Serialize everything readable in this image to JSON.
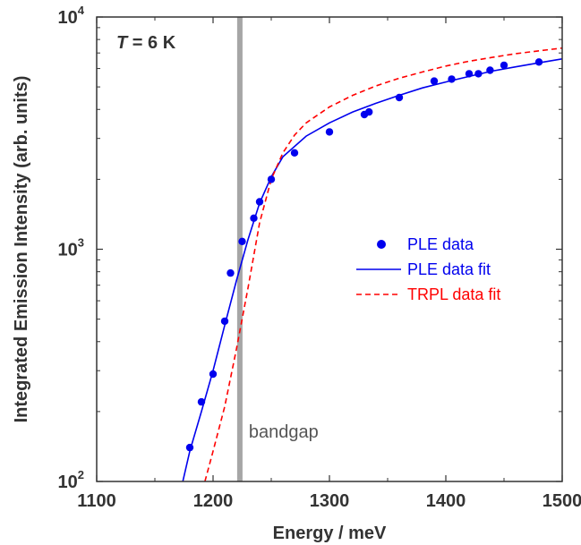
{
  "chart_data": {
    "type": "scatter",
    "title": "",
    "xlabel": "Energy / meV",
    "ylabel": "Integrated Emission Intensity (arb. units)",
    "xlim": [
      1100,
      1500
    ],
    "ylim": [
      100,
      10000
    ],
    "yscale": "log",
    "x_ticks": [
      "1100",
      "1200",
      "1300",
      "1400",
      "1500"
    ],
    "y_ticks": [
      {
        "base": "10",
        "exp": "2"
      },
      {
        "base": "10",
        "exp": "3"
      },
      {
        "base": "10",
        "exp": "4"
      }
    ],
    "grid": false,
    "legend_position": "right-middle",
    "annotation": {
      "italic": "T",
      "rest": " = 6 K"
    },
    "bandgap": {
      "label": "bandgap",
      "x": 1223,
      "color": "#a6a6a6"
    },
    "series": [
      {
        "name": "PLE data",
        "kind": "points",
        "color": "#0000ee",
        "x": [
          1180,
          1190,
          1200,
          1210,
          1215,
          1225,
          1235,
          1240,
          1250,
          1270,
          1300,
          1330,
          1334,
          1360,
          1390,
          1405,
          1420,
          1428,
          1438,
          1450,
          1480
        ],
        "y": [
          140,
          220,
          290,
          490,
          790,
          1080,
          1360,
          1600,
          2000,
          2600,
          3200,
          3800,
          3900,
          4500,
          5300,
          5400,
          5700,
          5700,
          5900,
          6200,
          6400
        ]
      },
      {
        "name": "PLE data fit",
        "kind": "line",
        "color": "#0000ee",
        "dash": "solid",
        "x": [
          1174,
          1180,
          1190,
          1200,
          1210,
          1220,
          1230,
          1240,
          1250,
          1260,
          1280,
          1300,
          1320,
          1340,
          1360,
          1380,
          1400,
          1420,
          1440,
          1460,
          1480,
          1500
        ],
        "y": [
          100,
          135,
          200,
          300,
          470,
          730,
          1100,
          1580,
          2050,
          2500,
          3070,
          3500,
          3900,
          4250,
          4600,
          4950,
          5250,
          5550,
          5850,
          6100,
          6350,
          6600
        ]
      },
      {
        "name": "TRPL data fit",
        "kind": "line",
        "color": "#ff0000",
        "dash": "dashed",
        "x": [
          1193,
          1200,
          1210,
          1220,
          1230,
          1240,
          1250,
          1260,
          1270,
          1280,
          1300,
          1320,
          1340,
          1360,
          1380,
          1400,
          1420,
          1440,
          1460,
          1480,
          1500
        ],
        "y": [
          100,
          135,
          210,
          370,
          680,
          1300,
          2000,
          2600,
          3100,
          3500,
          4100,
          4600,
          5050,
          5450,
          5800,
          6150,
          6450,
          6700,
          6950,
          7150,
          7350
        ]
      }
    ]
  }
}
